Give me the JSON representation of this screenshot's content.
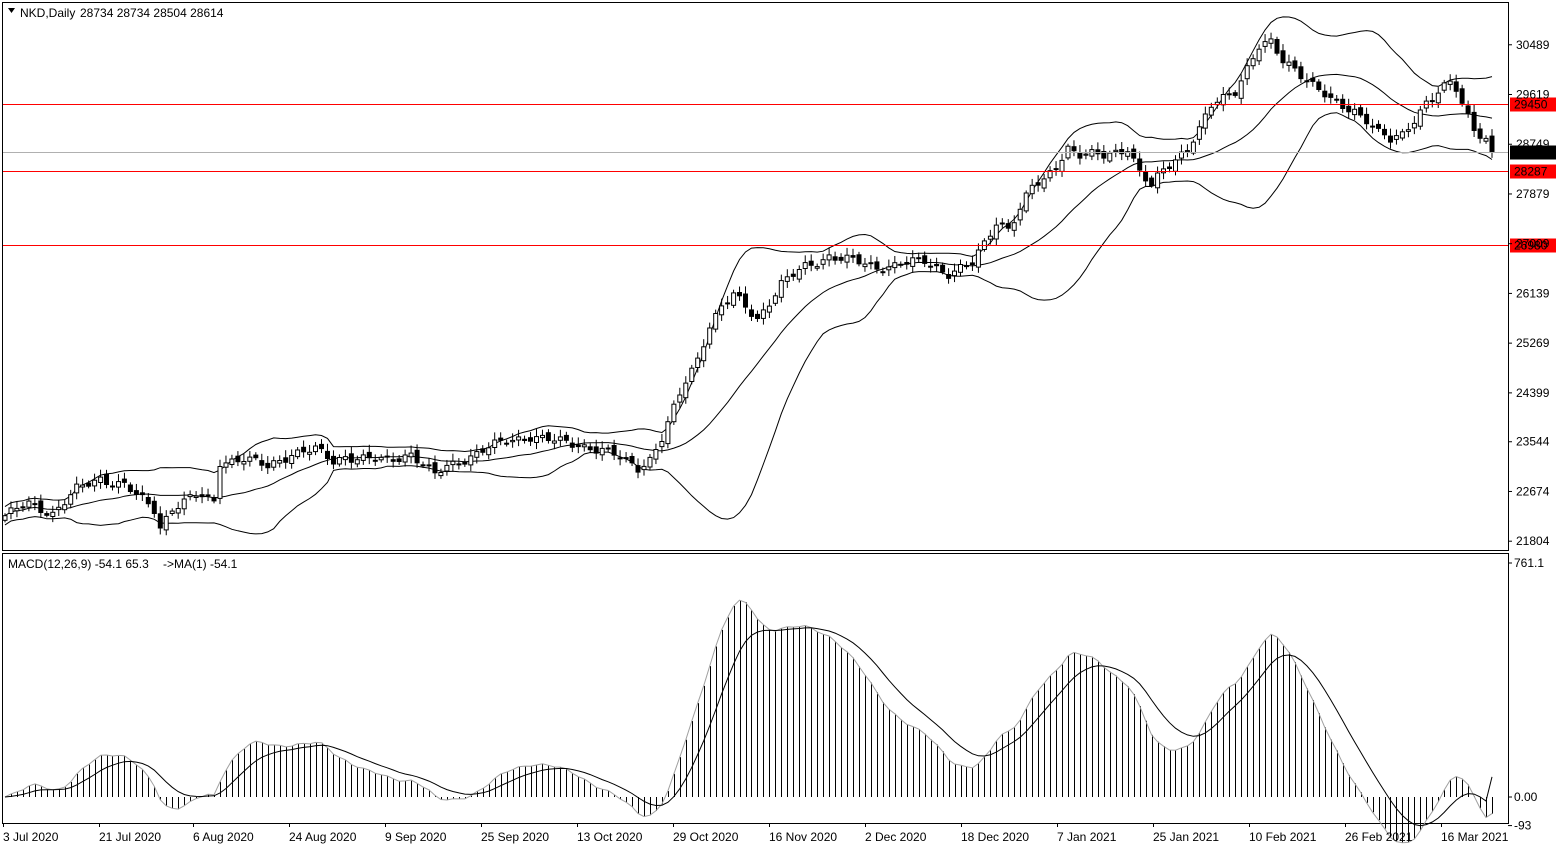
{
  "header": {
    "symbol": "NKD,Daily",
    "ohlc": "28734 28734 28504 28614"
  },
  "macd_header": {
    "label": "MACD(12,26,9) -54.1 65.3",
    "ma": "->MA(1) -54.1"
  },
  "colors": {
    "line": "#000000",
    "level": "#ff0000",
    "level_label_bg": "#ff0000",
    "current_price_bg": "#000000",
    "macd_signal": "#a0a0a0"
  },
  "chart_data": [
    {
      "type": "candlestick",
      "y_ticks": [
        30489,
        29619,
        28749,
        27879,
        27009,
        26139,
        25269,
        24399,
        23544,
        22674,
        21804
      ],
      "ylim": [
        21650,
        31220
      ],
      "x_tick_labels": [
        "3 Jul 2020",
        "21 Jul 2020",
        "6 Aug 2020",
        "24 Aug 2020",
        "9 Sep 2020",
        "25 Sep 2020",
        "13 Oct 2020",
        "29 Oct 2020",
        "16 Nov 2020",
        "2 Dec 2020",
        "18 Dec 2020",
        "7 Jan 2021",
        "25 Jan 2021",
        "10 Feb 2021",
        "26 Feb 2021",
        "16 Mar 2021"
      ],
      "horizontal_levels": [
        29450,
        28287,
        26980
      ],
      "current_price": 28614,
      "overlay": "Bollinger Bands",
      "close_path": [
        [
          0,
          22250
        ],
        [
          4,
          22450
        ],
        [
          8,
          22300
        ],
        [
          12,
          22700
        ],
        [
          16,
          22900
        ],
        [
          20,
          22800
        ],
        [
          22,
          22600
        ],
        [
          25,
          22350
        ],
        [
          26,
          22050
        ],
        [
          28,
          22400
        ],
        [
          32,
          22600
        ],
        [
          35,
          22500
        ],
        [
          36,
          23200
        ],
        [
          40,
          23250
        ],
        [
          44,
          23100
        ],
        [
          48,
          23350
        ],
        [
          52,
          23400
        ],
        [
          55,
          23200
        ],
        [
          57,
          23300
        ],
        [
          60,
          23250
        ],
        [
          64,
          23200
        ],
        [
          68,
          23350
        ],
        [
          70,
          23150
        ],
        [
          72,
          22950
        ],
        [
          74,
          23100
        ],
        [
          76,
          23200
        ],
        [
          80,
          23400
        ],
        [
          84,
          23550
        ],
        [
          88,
          23650
        ],
        [
          92,
          23550
        ],
        [
          96,
          23500
        ],
        [
          100,
          23400
        ],
        [
          103,
          23250
        ],
        [
          106,
          23100
        ],
        [
          108,
          23250
        ],
        [
          110,
          23600
        ],
        [
          112,
          24100
        ],
        [
          114,
          24600
        ],
        [
          116,
          25000
        ],
        [
          118,
          25600
        ],
        [
          120,
          25900
        ],
        [
          122,
          26100
        ],
        [
          124,
          25900
        ],
        [
          126,
          25700
        ],
        [
          128,
          26000
        ],
        [
          130,
          26300
        ],
        [
          134,
          26600
        ],
        [
          138,
          26800
        ],
        [
          142,
          26700
        ],
        [
          146,
          26600
        ],
        [
          150,
          26650
        ],
        [
          154,
          26700
        ],
        [
          158,
          26500
        ],
        [
          162,
          26650
        ],
        [
          164,
          27000
        ],
        [
          166,
          27400
        ],
        [
          168,
          27300
        ],
        [
          170,
          27600
        ],
        [
          172,
          28000
        ],
        [
          174,
          28100
        ],
        [
          176,
          28400
        ],
        [
          178,
          28700
        ],
        [
          180,
          28550
        ],
        [
          184,
          28550
        ],
        [
          188,
          28700
        ],
        [
          190,
          28250
        ],
        [
          192,
          28000
        ],
        [
          194,
          28300
        ],
        [
          196,
          28500
        ],
        [
          198,
          28700
        ],
        [
          200,
          29000
        ],
        [
          202,
          29400
        ],
        [
          204,
          29550
        ],
        [
          206,
          29700
        ],
        [
          208,
          30100
        ],
        [
          210,
          30450
        ],
        [
          212,
          30500
        ],
        [
          214,
          30200
        ],
        [
          216,
          30100
        ],
        [
          218,
          29900
        ],
        [
          220,
          29700
        ],
        [
          222,
          29500
        ],
        [
          224,
          29400
        ],
        [
          226,
          29350
        ],
        [
          228,
          29200
        ],
        [
          230,
          28950
        ],
        [
          232,
          28800
        ],
        [
          234,
          28900
        ],
        [
          236,
          29200
        ],
        [
          238,
          29500
        ],
        [
          240,
          29650
        ],
        [
          242,
          29800
        ],
        [
          243,
          29700
        ],
        [
          244,
          29450
        ],
        [
          246,
          29050
        ],
        [
          248,
          28850
        ],
        [
          249,
          28614
        ]
      ]
    },
    {
      "type": "line",
      "name": "MACD(12,26,9)",
      "macd": -54.1,
      "signal": 65.3,
      "ma": -54.1,
      "y_ticks": [
        761.1,
        0.0,
        -93
      ],
      "ylim": [
        -93,
        761.1
      ]
    }
  ]
}
